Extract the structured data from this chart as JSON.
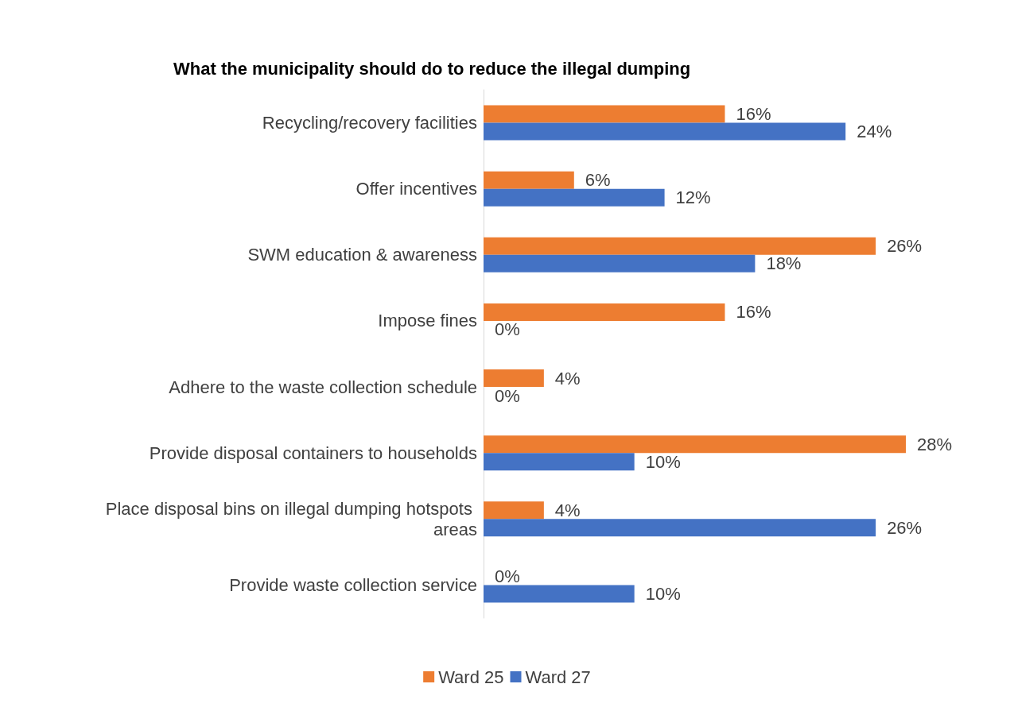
{
  "chart_data": {
    "type": "bar",
    "orientation": "horizontal",
    "title": "What the municipality should do to reduce the illegal dumping",
    "categories": [
      "Recycling/recovery facilities",
      "Offer incentives",
      "SWM education & awareness",
      "Impose fines",
      "Adhere to the waste collection schedule",
      "Provide disposal containers to households",
      "Place disposal bins on illegal dumping hotspots areas",
      "Provide waste collection service"
    ],
    "series": [
      {
        "name": "Ward 25",
        "color": "#ed7d31",
        "values": [
          16,
          6,
          26,
          16,
          4,
          28,
          4,
          0
        ],
        "value_labels": [
          "16%",
          "6%",
          "26%",
          "16%",
          "4%",
          "28%",
          "4%",
          "0%"
        ]
      },
      {
        "name": "Ward 27",
        "color": "#4472c4",
        "values": [
          24,
          12,
          18,
          0,
          0,
          10,
          26,
          10
        ],
        "value_labels": [
          "24%",
          "12%",
          "18%",
          "0%",
          "0%",
          "10%",
          "26%",
          "10%"
        ]
      }
    ],
    "tick_labels": "y",
    "legend": "bottom"
  }
}
